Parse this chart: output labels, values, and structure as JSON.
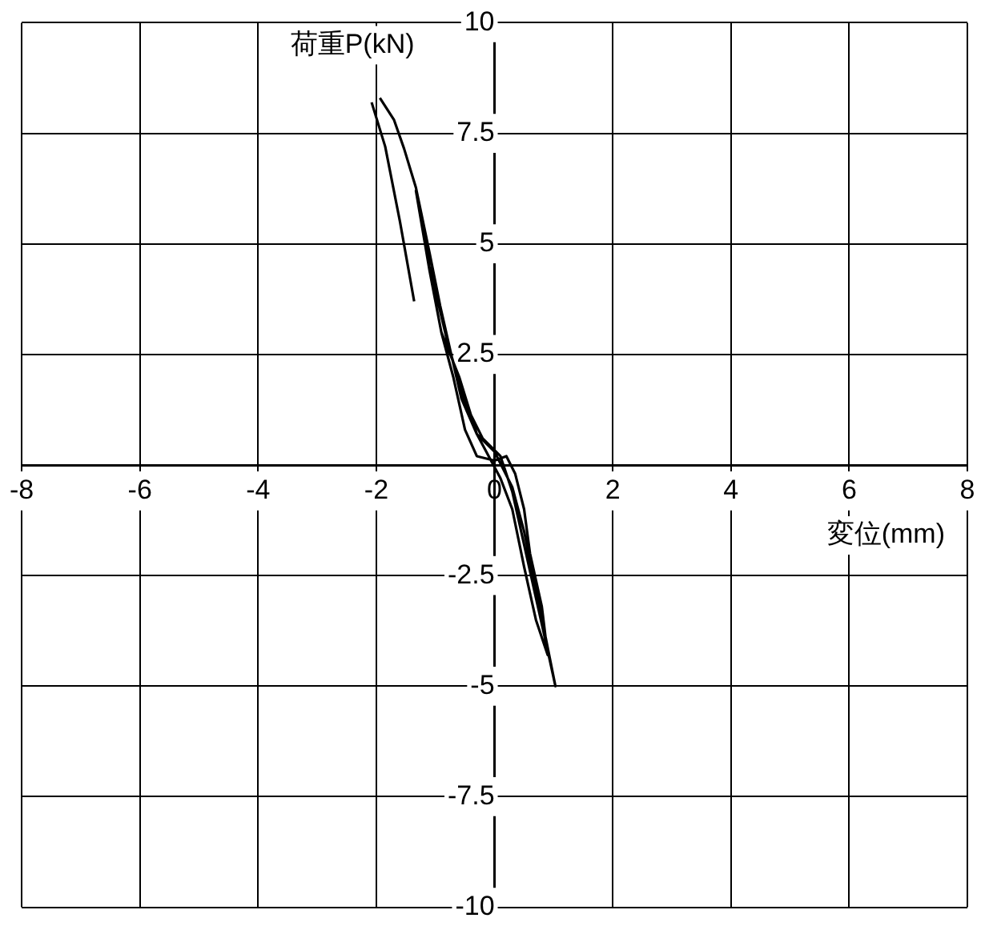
{
  "chart_data": {
    "type": "line",
    "xlabel": "変位(mm)",
    "ylabel": "荷重P(kN)",
    "xlim": [
      -8,
      8
    ],
    "xticks": [
      -8,
      -6,
      -4,
      -2,
      0,
      2,
      4,
      6,
      8
    ],
    "ylim": [
      -10,
      10
    ],
    "yticks": [
      -10,
      -7.5,
      -5,
      -2.5,
      {
        "value": 0,
        "label": null
      },
      2.5,
      5,
      7.5,
      10
    ],
    "grid": true,
    "legend": false,
    "marker": "none",
    "line_style": "solid",
    "series": [
      {
        "color": "#000000",
        "x": [
          -1.36,
          -1.6,
          -1.85,
          -2.08
        ],
        "values": [
          3.7,
          5.5,
          7.2,
          8.2
        ]
      },
      {
        "color": "#000000",
        "x": [
          -1.94,
          -1.7,
          -1.53,
          -1.33,
          -1.1,
          -0.92,
          -0.75,
          -0.56,
          -0.3,
          0,
          0.3,
          0.5,
          0.7,
          0.85,
          1.03,
          0.9,
          0.7,
          0.5,
          0.3,
          0.1,
          -0.2,
          -0.5,
          -0.8,
          -1.1,
          -1.33,
          -1.1,
          -0.9,
          -0.7,
          -0.5,
          -0.3,
          0,
          0.2,
          0.35,
          0.5,
          0.6,
          0.8,
          0.9,
          0.7,
          0.5,
          0.3,
          0.1,
          -0.3,
          -0.6,
          -0.9
        ],
        "values": [
          8.3,
          7.8,
          7.15,
          6.27,
          4.8,
          3.6,
          2.6,
          1.5,
          0.7,
          0.3,
          -0.5,
          -1.5,
          -2.8,
          -3.8,
          -5,
          -4.2,
          -3,
          -1.8,
          -0.6,
          0.2,
          0.6,
          1.4,
          2.8,
          4.5,
          6.2,
          4.4,
          3,
          2,
          0.8,
          0.2,
          0.1,
          0.2,
          -0.2,
          -1,
          -2,
          -3.2,
          -4.3,
          -3.5,
          -2.3,
          -1,
          -0.3,
          0.7,
          2,
          3
        ]
      }
    ]
  }
}
